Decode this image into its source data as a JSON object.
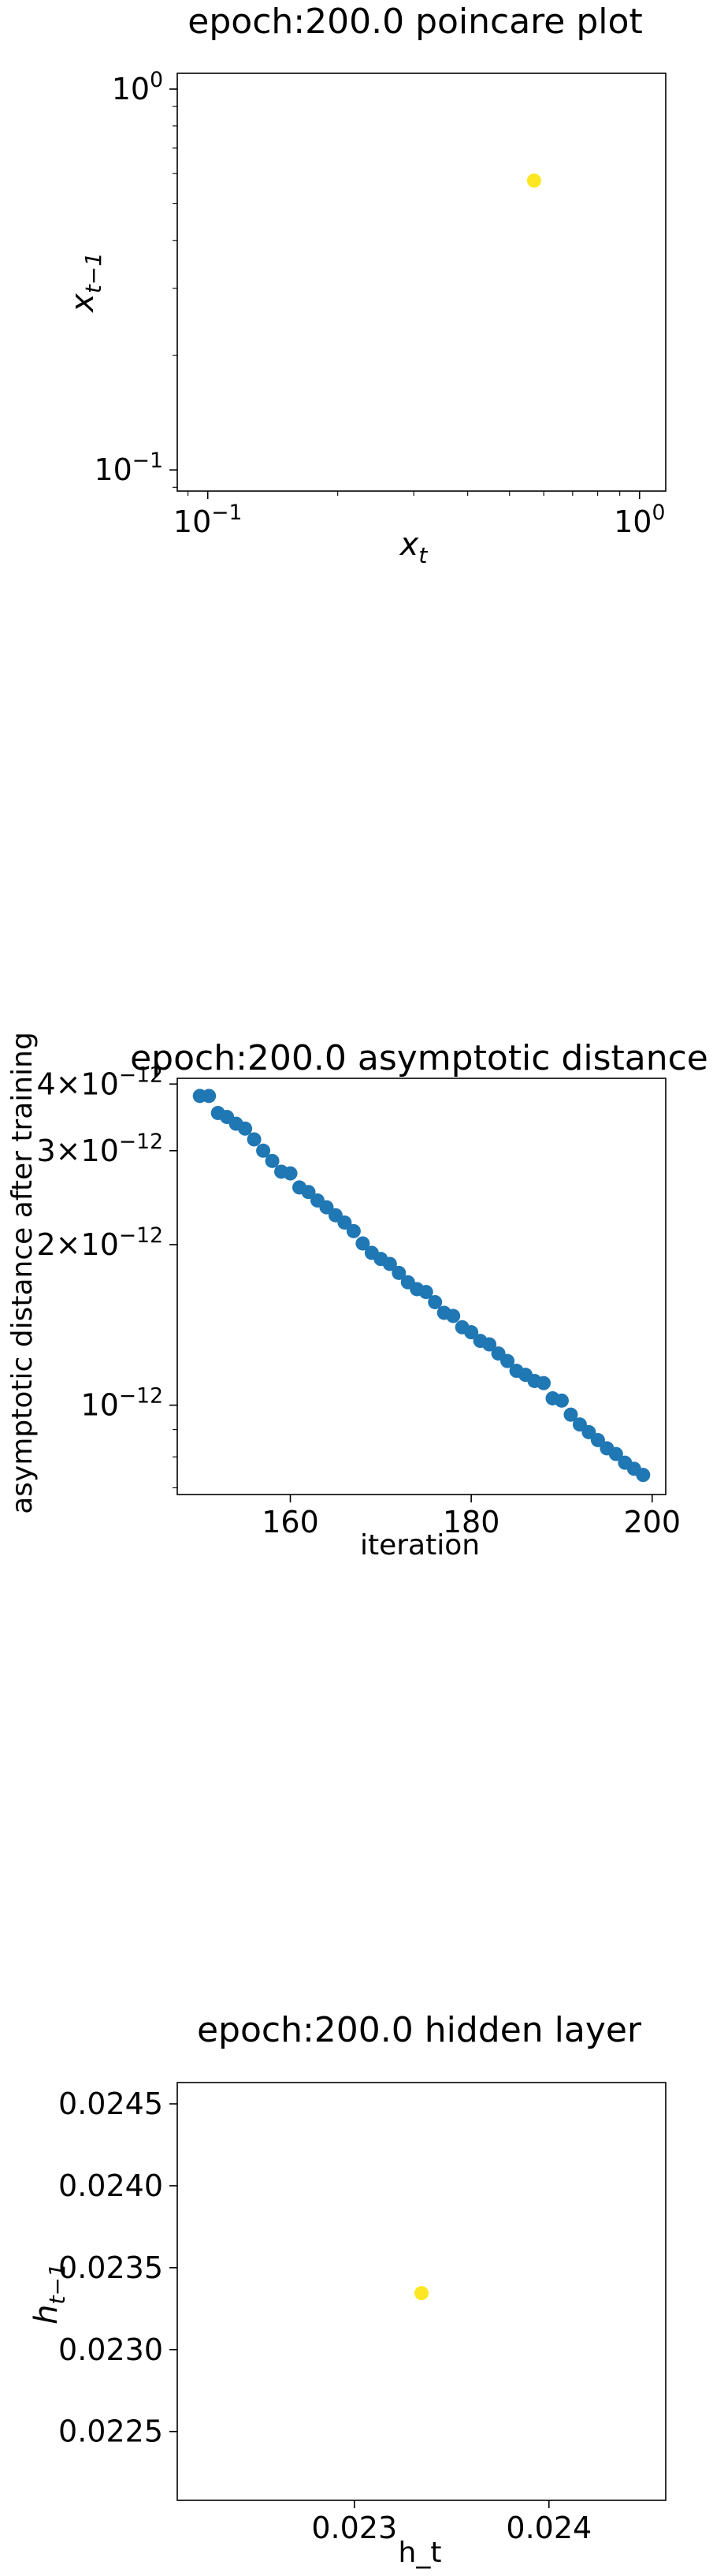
{
  "chart_data": [
    {
      "type": "scatter",
      "title": "epoch:200.0 poincare plot",
      "xlabel_base": "x",
      "xlabel_sub": "t",
      "ylabel_base": "x",
      "ylabel_sub": "t−1",
      "xscale": "log",
      "yscale": "log",
      "xlim": [
        0.085,
        1.15
      ],
      "ylim": [
        0.088,
        1.1
      ],
      "xticks": [
        {
          "v": 0.1,
          "base": "10",
          "exp": "−1"
        },
        {
          "v": 1,
          "base": "10",
          "exp": "0"
        }
      ],
      "yticks": [
        {
          "v": 0.1,
          "base": "10",
          "exp": "−1"
        },
        {
          "v": 1,
          "base": "10",
          "exp": "0"
        }
      ],
      "points": [
        {
          "x": 0.57,
          "y": 0.575
        }
      ],
      "point_color": "#fde725",
      "grid": false
    },
    {
      "type": "scatter",
      "title": "epoch:200.0 asymptotic distance",
      "xlabel": "iteration",
      "ylabel": "asymptotic distance after training",
      "xscale": "linear",
      "yscale": "log",
      "xlim": [
        147.5,
        201.5
      ],
      "ylim": [
        6.8e-13,
        4.1e-12
      ],
      "xticks": [
        {
          "v": 160,
          "label": "160"
        },
        {
          "v": 180,
          "label": "180"
        },
        {
          "v": 200,
          "label": "200"
        }
      ],
      "yticks": [
        {
          "v": 4e-12,
          "mant": "4",
          "base": "10",
          "exp": "−12"
        },
        {
          "v": 3e-12,
          "mant": "3",
          "base": "10",
          "exp": "−12"
        },
        {
          "v": 2e-12,
          "mant": "2",
          "base": "10",
          "exp": "−12"
        },
        {
          "v": 1e-12,
          "mant": "",
          "base": "10",
          "exp": "−12"
        }
      ],
      "x": [
        150,
        151,
        152,
        153,
        154,
        155,
        156,
        157,
        158,
        159,
        160,
        161,
        162,
        163,
        164,
        165,
        166,
        167,
        168,
        169,
        170,
        171,
        172,
        173,
        174,
        175,
        176,
        177,
        178,
        179,
        180,
        181,
        182,
        183,
        184,
        185,
        186,
        187,
        188,
        189,
        190,
        191,
        192,
        193,
        194,
        195,
        196,
        197,
        198,
        199
      ],
      "y": [
        3.8e-12,
        3.8e-12,
        3.53e-12,
        3.47e-12,
        3.37e-12,
        3.3e-12,
        3.15e-12,
        3e-12,
        2.87e-12,
        2.74e-12,
        2.72e-12,
        2.56e-12,
        2.51e-12,
        2.42e-12,
        2.35e-12,
        2.27e-12,
        2.2e-12,
        2.12e-12,
        2.01e-12,
        1.93e-12,
        1.88e-12,
        1.84e-12,
        1.77e-12,
        1.7e-12,
        1.65e-12,
        1.63e-12,
        1.56e-12,
        1.49e-12,
        1.47e-12,
        1.4e-12,
        1.37e-12,
        1.32e-12,
        1.3e-12,
        1.25e-12,
        1.21e-12,
        1.16e-12,
        1.14e-12,
        1.11e-12,
        1.1e-12,
        1.03e-12,
        1.02e-12,
        9.6e-13,
        9.2e-13,
        8.9e-13,
        8.6e-13,
        8.3e-13,
        8.1e-13,
        7.8e-13,
        7.6e-13,
        7.4e-13
      ],
      "point_color": "#1f77b4",
      "grid": false
    },
    {
      "type": "scatter",
      "title": "epoch:200.0 hidden layer",
      "xlabel": "h_t",
      "ylabel_base": "h",
      "ylabel_sub": "t−1",
      "xscale": "linear",
      "yscale": "linear",
      "xlim": [
        0.02209,
        0.0246
      ],
      "ylim": [
        0.02208,
        0.02463
      ],
      "xticks": [
        {
          "v": 0.023,
          "label": "0.023"
        },
        {
          "v": 0.024,
          "label": "0.024"
        }
      ],
      "yticks": [
        {
          "v": 0.0245,
          "label": "0.0245"
        },
        {
          "v": 0.024,
          "label": "0.0240"
        },
        {
          "v": 0.0235,
          "label": "0.0235"
        },
        {
          "v": 0.023,
          "label": "0.0230"
        },
        {
          "v": 0.0225,
          "label": "0.0225"
        }
      ],
      "points": [
        {
          "x": 0.023345,
          "y": 0.023345
        }
      ],
      "point_color": "#fde725",
      "grid": false
    }
  ]
}
